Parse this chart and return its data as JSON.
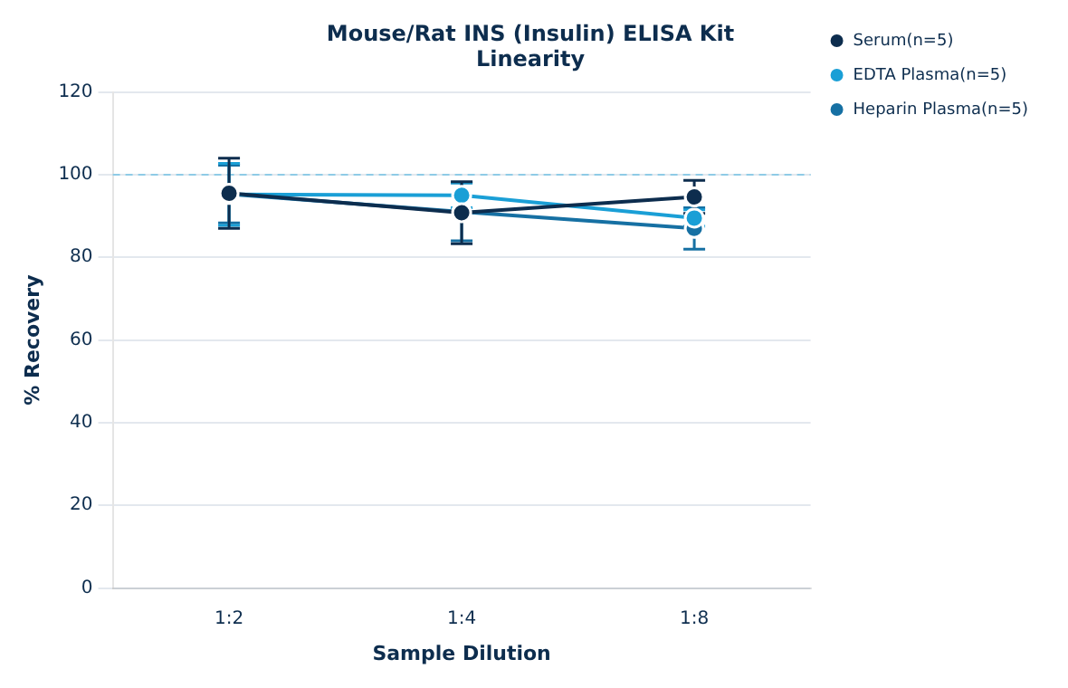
{
  "chart_data": {
    "type": "line",
    "title": "Mouse/Rat INS (Insulin) ELISA Kit\nLinearity",
    "xlabel": "Sample Dilution",
    "ylabel": "% Recovery",
    "categories": [
      "1:2",
      "1:4",
      "1:8"
    ],
    "series": [
      {
        "name": "Serum(n=5)",
        "color": "#0d2d4e",
        "values": [
          95.5,
          90.8,
          94.6
        ],
        "errors": [
          8.5,
          7.5,
          4
        ]
      },
      {
        "name": "EDTA Plasma(n=5)",
        "color": "#1a9fd6",
        "values": [
          95.2,
          95,
          89.5
        ],
        "errors": [
          7.5,
          3,
          2
        ]
      },
      {
        "name": "Heparin Plasma(n=5)",
        "color": "#1670a3",
        "values": [
          95.3,
          91,
          87
        ],
        "errors": [
          7,
          7,
          5
        ]
      }
    ],
    "ylim": [
      0,
      120
    ],
    "yticks": [
      0,
      20,
      40,
      60,
      80,
      100,
      120
    ],
    "grid": "y",
    "legend": "top right",
    "marker": "circle",
    "line_style": "solid",
    "ref_lines": [
      {
        "axis": "y",
        "value": 100,
        "color": "#8fcbe6",
        "line_style": "dashed"
      }
    ]
  }
}
